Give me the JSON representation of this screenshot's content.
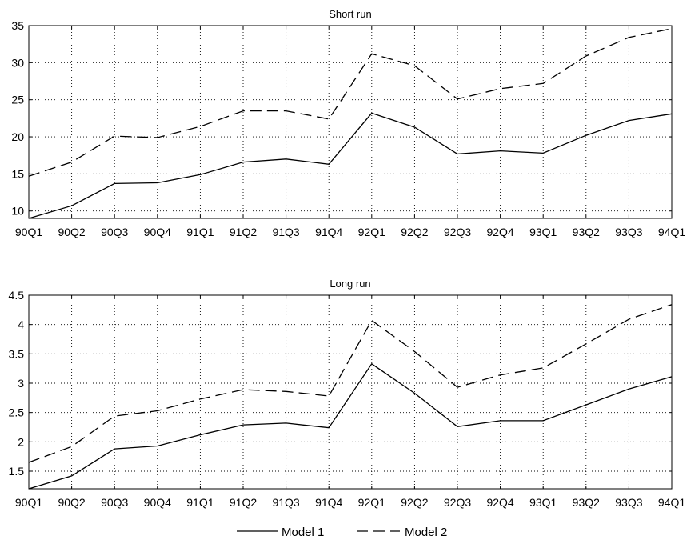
{
  "chart_data": [
    {
      "type": "line",
      "title": "Short run",
      "xlabel": "",
      "ylabel": "",
      "categories": [
        "90Q1",
        "90Q2",
        "90Q3",
        "90Q4",
        "91Q1",
        "91Q2",
        "91Q3",
        "91Q4",
        "92Q1",
        "92Q2",
        "92Q3",
        "92Q4",
        "93Q1",
        "93Q2",
        "93Q3",
        "94Q1"
      ],
      "ylim": [
        9,
        35
      ],
      "yticks": [
        "10",
        "15",
        "20",
        "25",
        "30",
        "35"
      ],
      "grid": true,
      "series": [
        {
          "name": "Model 1",
          "style": "solid",
          "values": [
            9.0,
            10.7,
            13.7,
            13.8,
            14.9,
            16.6,
            17.0,
            16.3,
            23.2,
            21.3,
            17.7,
            18.1,
            17.8,
            20.2,
            22.2,
            23.1
          ]
        },
        {
          "name": "Model 2",
          "style": "dashed",
          "values": [
            14.7,
            16.6,
            20.1,
            19.9,
            21.4,
            23.5,
            23.5,
            22.4,
            31.2,
            29.6,
            25.1,
            26.5,
            27.2,
            30.9,
            33.4,
            34.6
          ]
        }
      ]
    },
    {
      "type": "line",
      "title": "Long run",
      "xlabel": "",
      "ylabel": "",
      "categories": [
        "90Q1",
        "90Q2",
        "90Q3",
        "90Q4",
        "91Q1",
        "91Q2",
        "91Q3",
        "91Q4",
        "92Q1",
        "92Q2",
        "92Q3",
        "92Q4",
        "93Q1",
        "93Q2",
        "93Q3",
        "94Q1"
      ],
      "ylim": [
        1.2,
        4.5
      ],
      "yticks": [
        "1.5",
        "2",
        "2.5",
        "3",
        "3.5",
        "4",
        "4.5"
      ],
      "grid": true,
      "series": [
        {
          "name": "Model 1",
          "style": "solid",
          "values": [
            1.2,
            1.42,
            1.88,
            1.93,
            2.12,
            2.29,
            2.32,
            2.24,
            3.33,
            2.83,
            2.26,
            2.36,
            2.36,
            2.63,
            2.9,
            3.11
          ]
        },
        {
          "name": "Model 2",
          "style": "dashed",
          "values": [
            1.65,
            1.92,
            2.44,
            2.53,
            2.73,
            2.89,
            2.86,
            2.78,
            4.07,
            3.54,
            2.93,
            3.14,
            3.26,
            3.67,
            4.09,
            4.34
          ]
        }
      ]
    }
  ],
  "legend": {
    "position": "bottom",
    "items": [
      {
        "label": "Model 1",
        "style": "solid"
      },
      {
        "label": "Model 2",
        "style": "dashed"
      }
    ]
  }
}
